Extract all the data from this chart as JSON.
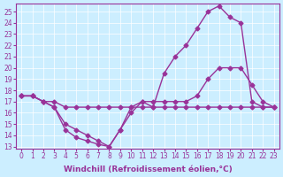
{
  "background_color": "#cceeff",
  "plot_bg_color": "#cceeff",
  "line_color": "#993399",
  "marker": "D",
  "markersize": 2.5,
  "linewidth": 1.0,
  "xlabel": "Windchill (Refroidissement éolien,°C)",
  "xlabel_fontsize": 6.5,
  "tick_fontsize": 5.5,
  "xlim": [
    -0.5,
    23.5
  ],
  "ylim": [
    12.8,
    25.7
  ],
  "yticks": [
    13,
    14,
    15,
    16,
    17,
    18,
    19,
    20,
    21,
    22,
    23,
    24,
    25
  ],
  "xticks": [
    0,
    1,
    2,
    3,
    4,
    5,
    6,
    7,
    8,
    9,
    10,
    11,
    12,
    13,
    14,
    15,
    16,
    17,
    18,
    19,
    20,
    21,
    22,
    23
  ],
  "line1_x": [
    0,
    1,
    2,
    3,
    4,
    5,
    6,
    7,
    8,
    9,
    10,
    11,
    12,
    13,
    14,
    15,
    16,
    17,
    18,
    19,
    20,
    21,
    22,
    23
  ],
  "line1_y": [
    17.5,
    17.5,
    17.0,
    17.0,
    16.5,
    16.5,
    16.5,
    16.5,
    16.5,
    16.5,
    16.5,
    16.5,
    16.5,
    16.5,
    16.5,
    16.5,
    16.5,
    16.5,
    16.5,
    16.5,
    16.5,
    16.5,
    16.5,
    16.5
  ],
  "line2_x": [
    0,
    1,
    2,
    3,
    4,
    5,
    6,
    7,
    8,
    9,
    10,
    11,
    12,
    13,
    14,
    15,
    16,
    17,
    18,
    19,
    20,
    21,
    22,
    23
  ],
  "line2_y": [
    17.5,
    17.5,
    17.0,
    16.5,
    15.0,
    14.5,
    14.0,
    13.5,
    13.0,
    14.5,
    16.5,
    17.0,
    17.0,
    17.0,
    17.0,
    17.0,
    17.5,
    19.0,
    20.0,
    20.0,
    20.0,
    18.5,
    17.0,
    16.5
  ],
  "line3_x": [
    0,
    1,
    2,
    3,
    4,
    5,
    6,
    7,
    8,
    9,
    10,
    11,
    12,
    13,
    14,
    15,
    16,
    17,
    18,
    19,
    20,
    21,
    22,
    23
  ],
  "line3_y": [
    17.5,
    17.5,
    17.0,
    16.5,
    14.5,
    13.8,
    13.5,
    13.2,
    13.0,
    14.5,
    16.0,
    17.0,
    16.5,
    19.5,
    21.0,
    22.0,
    23.5,
    25.0,
    25.5,
    24.5,
    24.0,
    17.0,
    16.5,
    16.5
  ]
}
